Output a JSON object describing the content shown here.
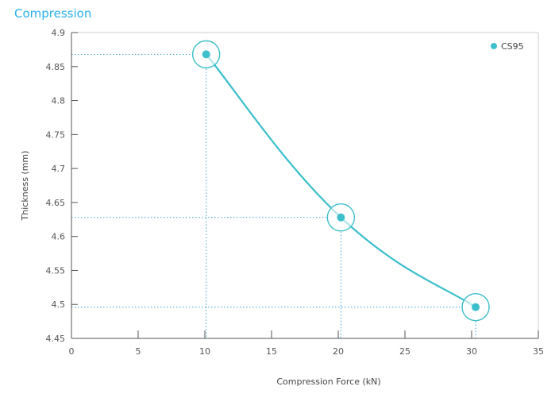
{
  "page_title": "Compression",
  "colors": {
    "accent": "#3cbfcb",
    "title": "#2ab0ea",
    "axis": "#555555",
    "guide": "#3a9fd8"
  },
  "chart_data": {
    "type": "line",
    "title": "Compression",
    "xlabel": "Compression Force (kN)",
    "ylabel": "Thickness (mm)",
    "xlim": [
      0,
      35
    ],
    "ylim": [
      4.45,
      4.9
    ],
    "x_ticks": [
      "0",
      "5",
      "10",
      "15",
      "20",
      "25",
      "30",
      "35"
    ],
    "y_ticks": [
      "4.45",
      "4.5",
      "4.55",
      "4.6",
      "4.65",
      "4.7",
      "4.75",
      "4.8",
      "4.85",
      "4.9"
    ],
    "grid": false,
    "legend_position": "top-right",
    "series": [
      {
        "name": "CS95",
        "x": [
          10.1,
          20.2,
          30.3
        ],
        "y": [
          4.868,
          4.628,
          4.496
        ],
        "marker": "circle with ring",
        "guide_lines": true
      }
    ]
  }
}
